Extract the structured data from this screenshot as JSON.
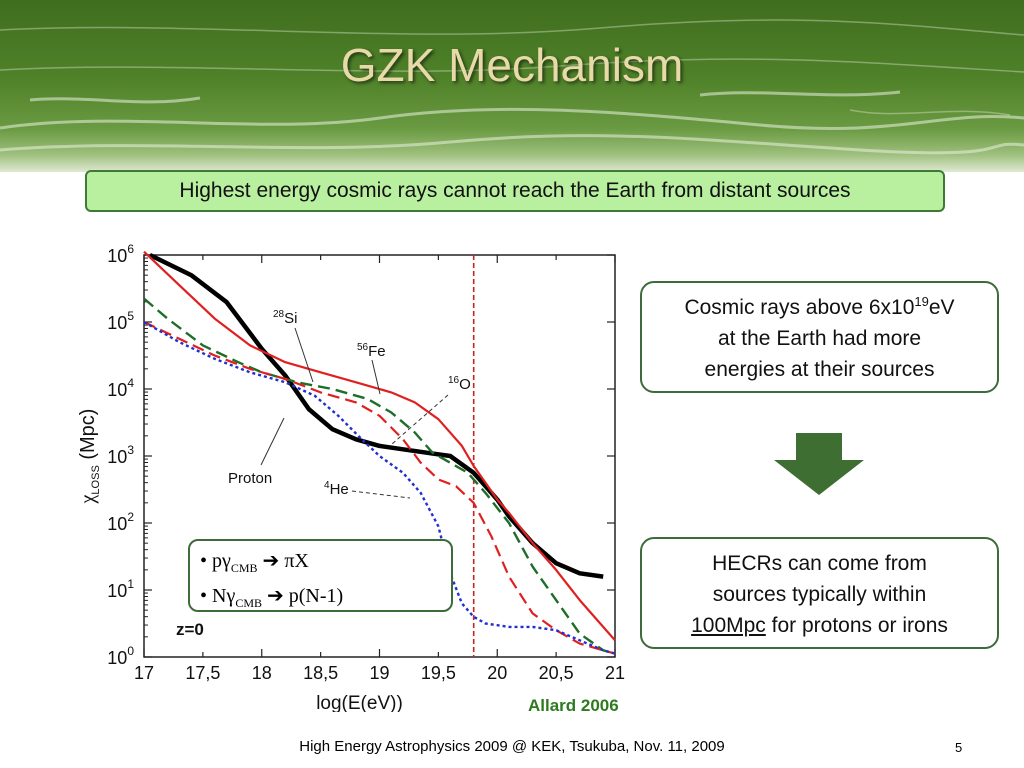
{
  "slide": {
    "title": "GZK Mechanism",
    "headline": "Highest energy cosmic rays cannot reach the Earth from distant sources",
    "box1": {
      "line1_pre": "Cosmic rays above 6x10",
      "line1_sup": "19",
      "line1_post": "eV",
      "line2": "at the Earth had more",
      "line3": "energies at their sources"
    },
    "box2": {
      "line1": "HECRs can come from",
      "line2": "sources typically within",
      "line3_underlined": "100Mpc",
      "line3_rest": " for protons or irons"
    },
    "reactions": {
      "r1": {
        "bullet": "•",
        "a": " p",
        "g": "γ",
        "sub": "CMB",
        "arrow": "➔",
        "result": "πX"
      },
      "r2": {
        "bullet": "•",
        "a": " N",
        "g": "γ",
        "sub": "CMB",
        "arrow": "➔",
        "result": "p(N-1)"
      }
    },
    "citation": "Allard 2006",
    "footer": "High Energy Astrophysics 2009 @ KEK, Tsukuba, Nov. 11, 2009",
    "page_number": "5",
    "colors": {
      "banner": "#4f8129",
      "title_text": "#e8d9a8",
      "headline_bg": "#b8f0a0",
      "box_border": "#3e6b3a",
      "arrow": "#3f6e33",
      "citation": "#2e7a1e"
    }
  },
  "chart_data": {
    "type": "line",
    "xlim": [
      17,
      21
    ],
    "ylim_log10": [
      0,
      6
    ],
    "yscale": "log",
    "xlabel": "log(E(eV))",
    "ylabel_chi": "χ",
    "ylabel_sub": "LOSS",
    "ylabel_unit": " (Mpc)",
    "xticks": [
      "17",
      "17,5",
      "18",
      "18,5",
      "19",
      "19,5",
      "20",
      "20,5",
      "21"
    ],
    "yticks": [
      {
        "base": "10",
        "exp": "0",
        "value": 0
      },
      {
        "base": "10",
        "exp": "1",
        "value": 1
      },
      {
        "base": "10",
        "exp": "2",
        "value": 2
      },
      {
        "base": "10",
        "exp": "3",
        "value": 3
      },
      {
        "base": "10",
        "exp": "4",
        "value": 4
      },
      {
        "base": "10",
        "exp": "5",
        "value": 5
      },
      {
        "base": "10",
        "exp": "6",
        "value": 6
      }
    ],
    "z_label": "z=0",
    "threshold_x": 19.8,
    "series": [
      {
        "name": "Proton",
        "color": "#000000",
        "dash": "solid",
        "width": 4.5,
        "x": [
          17.05,
          17.4,
          17.7,
          18.0,
          18.2,
          18.4,
          18.6,
          18.8,
          19.0,
          19.2,
          19.4,
          19.6,
          19.8,
          19.9,
          20.0,
          20.1,
          20.3,
          20.5,
          20.7,
          20.9
        ],
        "log10y": [
          6.0,
          5.7,
          5.3,
          4.6,
          4.2,
          3.7,
          3.4,
          3.25,
          3.15,
          3.1,
          3.05,
          3.0,
          2.75,
          2.55,
          2.35,
          2.1,
          1.7,
          1.4,
          1.25,
          1.2
        ]
      },
      {
        "name": "Fe",
        "iso": "56",
        "color": "#e02020",
        "dash": "solid",
        "width": 2.2,
        "x": [
          17.0,
          17.3,
          17.6,
          17.9,
          18.2,
          18.5,
          18.8,
          19.1,
          19.3,
          19.5,
          19.7,
          19.8,
          19.9,
          20.0,
          20.1,
          20.3,
          20.5,
          20.7,
          20.9,
          21.0
        ],
        "log10y": [
          6.05,
          5.55,
          5.05,
          4.65,
          4.4,
          4.25,
          4.1,
          3.95,
          3.8,
          3.55,
          3.15,
          2.85,
          2.6,
          2.35,
          2.15,
          1.7,
          1.3,
          0.85,
          0.45,
          0.25
        ]
      },
      {
        "name": "Si",
        "iso": "28",
        "color": "#1e6e2a",
        "dash": "dashed",
        "width": 2.4,
        "x": [
          17.0,
          17.2,
          17.5,
          17.8,
          18.0,
          18.3,
          18.6,
          18.9,
          19.1,
          19.3,
          19.45,
          19.6,
          19.75,
          19.9,
          20.1,
          20.3,
          20.5,
          20.7,
          20.9,
          21.0
        ],
        "log10y": [
          5.35,
          5.05,
          4.65,
          4.4,
          4.25,
          4.1,
          4.0,
          3.85,
          3.65,
          3.35,
          3.05,
          2.9,
          2.75,
          2.45,
          2.0,
          1.35,
          0.85,
          0.35,
          0.1,
          0.05
        ]
      },
      {
        "name": "O",
        "iso": "16",
        "color": "#e02020",
        "dash": "dashed",
        "width": 2.2,
        "x": [
          17.0,
          17.3,
          17.6,
          17.9,
          18.2,
          18.5,
          18.8,
          19.0,
          19.2,
          19.35,
          19.5,
          19.65,
          19.8,
          19.95,
          20.1,
          20.3,
          20.5,
          20.7,
          20.9,
          21.0
        ],
        "log10y": [
          5.0,
          4.75,
          4.5,
          4.3,
          4.15,
          3.95,
          3.8,
          3.6,
          3.25,
          2.9,
          2.65,
          2.55,
          2.3,
          1.8,
          1.2,
          0.65,
          0.4,
          0.2,
          0.1,
          0.05
        ]
      },
      {
        "name": "He",
        "iso": "4",
        "color": "#2030d0",
        "dash": "dotted",
        "width": 2.4,
        "x": [
          17.0,
          17.3,
          17.6,
          17.9,
          18.2,
          18.45,
          18.65,
          18.85,
          19.0,
          19.2,
          19.35,
          19.5,
          19.6,
          19.7,
          19.8,
          19.9,
          20.1,
          20.3,
          20.5,
          20.7,
          20.9,
          21.0
        ],
        "log10y": [
          5.0,
          4.7,
          4.45,
          4.25,
          4.1,
          3.9,
          3.6,
          3.25,
          3.0,
          2.75,
          2.45,
          1.95,
          1.25,
          0.8,
          0.6,
          0.5,
          0.45,
          0.45,
          0.4,
          0.25,
          0.1,
          0.05
        ]
      }
    ],
    "annotations": {
      "si": "Si",
      "fe": "Fe",
      "o": "O",
      "he": "He",
      "proton": "Proton"
    }
  }
}
